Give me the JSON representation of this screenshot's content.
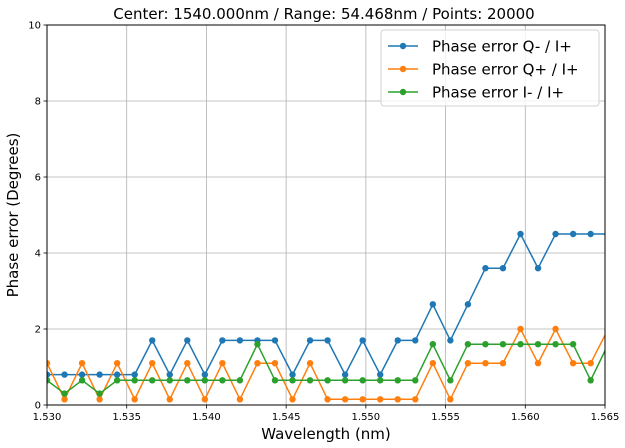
{
  "chart_data": {
    "type": "line",
    "title": "Center: 1540.000nm / Range: 54.468nm / Points: 20000",
    "xlabel": "Wavelength (nm)",
    "ylabel": "Phase error (Degrees)",
    "xlim": [
      1.53,
      1.565
    ],
    "ylim": [
      0,
      10
    ],
    "xticks": [
      "1.530",
      "1.535",
      "1.540",
      "1.545",
      "1.550",
      "1.555",
      "1.560",
      "1.565"
    ],
    "yticks": [
      "0",
      "2",
      "4",
      "6",
      "8",
      "10"
    ],
    "grid": true,
    "legend_position": "top-right",
    "x": [
      1.53,
      1.5311,
      1.5322,
      1.5333,
      1.5344,
      1.5355,
      1.5366,
      1.5377,
      1.5388,
      1.5399,
      1.541,
      1.5421,
      1.5432,
      1.5443,
      1.5454,
      1.5465,
      1.5476,
      1.5487,
      1.5498,
      1.5509,
      1.552,
      1.5531,
      1.5542,
      1.5553,
      1.5564,
      1.5575,
      1.5586,
      1.5597,
      1.5608,
      1.5619,
      1.563,
      1.5641,
      1.5652
    ],
    "series": [
      {
        "name": "Phase error Q- / I+",
        "color": "#1f77b4",
        "values": [
          0.8,
          0.8,
          0.8,
          0.8,
          0.8,
          0.8,
          1.7,
          0.8,
          1.7,
          0.8,
          1.7,
          1.7,
          1.7,
          1.7,
          0.8,
          1.7,
          1.7,
          0.8,
          1.7,
          0.8,
          1.7,
          1.7,
          2.65,
          1.7,
          2.65,
          3.6,
          3.6,
          4.5,
          3.6,
          4.5,
          4.5,
          4.5,
          4.5
        ]
      },
      {
        "name": "Phase error Q+ / I+",
        "color": "#ff7f0e",
        "values": [
          1.1,
          0.15,
          1.1,
          0.15,
          1.1,
          0.15,
          1.1,
          0.15,
          1.1,
          0.15,
          1.1,
          0.15,
          1.1,
          1.1,
          0.15,
          1.1,
          0.15,
          0.15,
          0.15,
          0.15,
          0.15,
          0.15,
          1.1,
          0.15,
          1.1,
          1.1,
          1.1,
          2.0,
          1.1,
          2.0,
          1.1,
          1.1,
          2.0
        ]
      },
      {
        "name": "Phase error I- / I+",
        "color": "#2ca02c",
        "values": [
          0.65,
          0.3,
          0.65,
          0.3,
          0.65,
          0.65,
          0.65,
          0.65,
          0.65,
          0.65,
          0.65,
          0.65,
          1.6,
          0.65,
          0.65,
          0.65,
          0.65,
          0.65,
          0.65,
          0.65,
          0.65,
          0.65,
          1.6,
          0.65,
          1.6,
          1.6,
          1.6,
          1.6,
          1.6,
          1.6,
          1.6,
          0.65,
          1.6
        ]
      }
    ]
  }
}
